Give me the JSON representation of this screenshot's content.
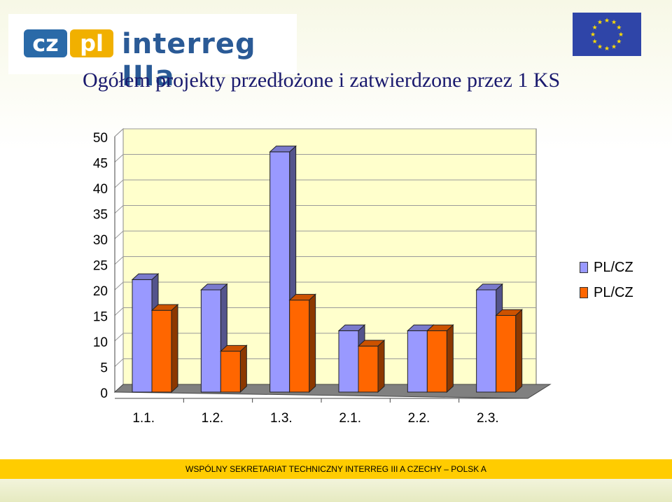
{
  "header": {
    "logo_cz": "cz",
    "logo_pl": "pl",
    "logo_text": "interreg IIIa",
    "title": "Ogółem projekty przedłożone i zatwierdzone przez 1 KS"
  },
  "colors": {
    "series1": "#9999ff",
    "series2": "#ff6600",
    "back_wall": "#ffffcc",
    "floor": "#808080",
    "footer": "#ffcc00",
    "eu_blue": "#2f45a8",
    "eu_star": "#ffdd00"
  },
  "chart_data": {
    "type": "bar",
    "categories": [
      "1.1.",
      "1.2.",
      "1.3.",
      "2.1.",
      "2.2.",
      "2.3."
    ],
    "series": [
      {
        "name": "PL/CZ",
        "values": [
          22,
          20,
          47,
          12,
          12,
          20
        ]
      },
      {
        "name": "PL/CZ",
        "values": [
          16,
          8,
          18,
          9,
          12,
          15
        ]
      }
    ],
    "ylim": [
      0,
      50
    ],
    "yticks": [
      0,
      5,
      10,
      15,
      20,
      25,
      30,
      35,
      40,
      45,
      50
    ],
    "grid": true,
    "legend_position": "right",
    "style": "3d"
  },
  "footer": {
    "text": "WSPÓLNY SEKRETARIAT TECHNICZNY  INTERREG  III A CZECHY – POLSK A"
  }
}
